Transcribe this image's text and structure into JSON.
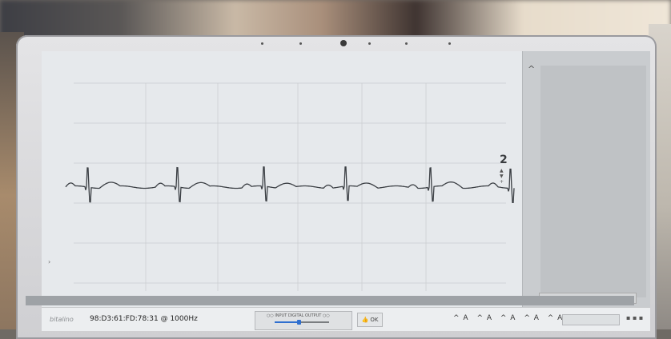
{
  "app": {
    "logo_text": "bitalino",
    "device_info": "98:D3:61:FD:78:31 @ 1000Hz"
  },
  "plot": {
    "signal": "ECG",
    "scale_value": "2",
    "scale_controls": [
      "▲",
      "▼",
      "+",
      "-"
    ]
  },
  "side_panel": {
    "arrow": "^",
    "label": "",
    "bottom_button": ""
  },
  "toolbar": {
    "center_row1": "○○  INPUT  DIGITAL  OUTPUT  ○○",
    "center_row2": "",
    "thumb_label": "👍 OK",
    "channel_arrows": [
      "^ A",
      "^ A",
      "^ A",
      "^ A",
      "^ A",
      "^ A"
    ],
    "bottom_right_button": "",
    "mini_icons": "▪ ▪ ▪"
  },
  "colors": {
    "screen_bg": "#e6e9ec",
    "trace": "#3b3f44",
    "grid": "#c9ccd0"
  }
}
